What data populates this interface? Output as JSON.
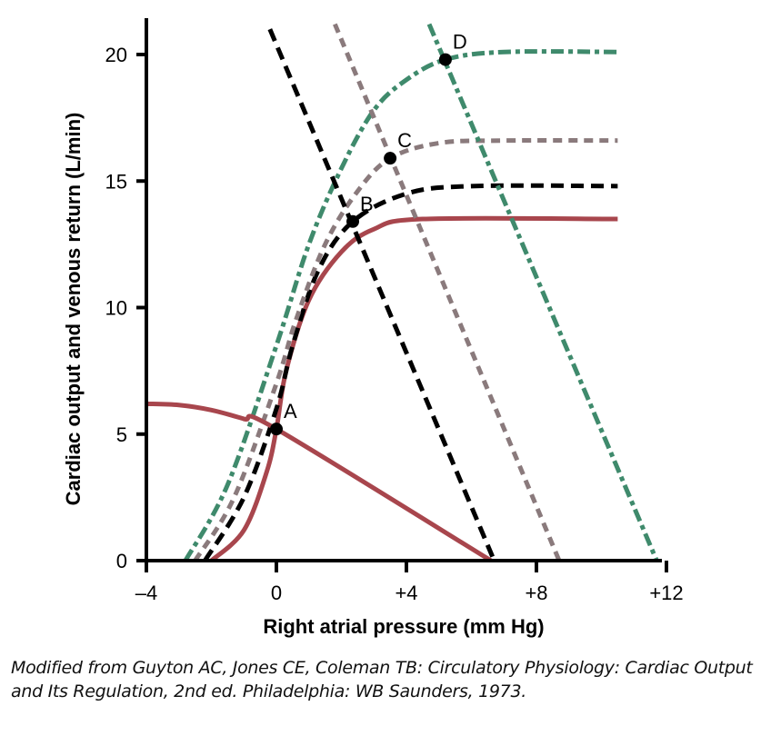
{
  "chart_data": {
    "type": "line",
    "xlabel": "Right atrial pressure (mm Hg)",
    "ylabel": "Cardiac output and venous return (L/min)",
    "xlim": [
      -4,
      12
    ],
    "ylim": [
      0,
      20
    ],
    "x_ticks": [
      {
        "v": -4,
        "label": "–4"
      },
      {
        "v": 0,
        "label": "0"
      },
      {
        "v": 4,
        "label": "+4"
      },
      {
        "v": 8,
        "label": "+8"
      },
      {
        "v": 12,
        "label": "+12"
      }
    ],
    "y_ticks": [
      {
        "v": 0,
        "label": "0"
      },
      {
        "v": 5,
        "label": "5"
      },
      {
        "v": 10,
        "label": "10"
      },
      {
        "v": 15,
        "label": "15"
      },
      {
        "v": 20,
        "label": "20"
      }
    ],
    "grid": false,
    "series": [
      {
        "kind": "cardiac-output",
        "color": "#a8464d",
        "style": "solid",
        "points": [
          [
            -2,
            0
          ],
          [
            -1,
            1.2
          ],
          [
            -0.3,
            3.5
          ],
          [
            0,
            5.2
          ],
          [
            0.3,
            7.5
          ],
          [
            1,
            10.3
          ],
          [
            2,
            12.2
          ],
          [
            3,
            13.1
          ],
          [
            4.5,
            13.5
          ],
          [
            10.5,
            13.5
          ]
        ]
      },
      {
        "kind": "cardiac-output",
        "color": "#000000",
        "style": "dashed",
        "points": [
          [
            -2.2,
            0
          ],
          [
            -1,
            2.5
          ],
          [
            0,
            6
          ],
          [
            0.5,
            8.5
          ],
          [
            1.3,
            11.5
          ],
          [
            2.35,
            13.4
          ],
          [
            4,
            14.5
          ],
          [
            6,
            14.8
          ],
          [
            10.5,
            14.8
          ]
        ]
      },
      {
        "kind": "cardiac-output",
        "color": "#8a7a7c",
        "style": "dotted-dash",
        "points": [
          [
            -2.5,
            0
          ],
          [
            -1.3,
            2.5
          ],
          [
            0,
            7
          ],
          [
            0.6,
            9.5
          ],
          [
            1.5,
            12.5
          ],
          [
            2.5,
            14.6
          ],
          [
            3.5,
            15.9
          ],
          [
            5,
            16.5
          ],
          [
            7,
            16.6
          ],
          [
            10.5,
            16.6
          ]
        ]
      },
      {
        "kind": "cardiac-output",
        "color": "#3f8a6c",
        "style": "dash-dot",
        "points": [
          [
            -2.8,
            0
          ],
          [
            -1.5,
            3
          ],
          [
            0,
            8.5
          ],
          [
            1,
            12.5
          ],
          [
            2,
            15.5
          ],
          [
            3,
            17.8
          ],
          [
            4,
            19
          ],
          [
            5.2,
            19.8
          ],
          [
            7,
            20.1
          ],
          [
            10.5,
            20.1
          ]
        ]
      },
      {
        "kind": "venous-return",
        "color": "#a8464d",
        "style": "solid",
        "points": [
          [
            -4,
            6.2
          ],
          [
            -3,
            6.15
          ],
          [
            -2,
            5.95
          ],
          [
            -1,
            5.6
          ],
          [
            0,
            5.2
          ],
          [
            6.6,
            0
          ]
        ]
      },
      {
        "kind": "venous-return",
        "color": "#000000",
        "style": "dashed",
        "points": [
          [
            -0.2,
            21
          ],
          [
            6.7,
            0
          ]
        ]
      },
      {
        "kind": "venous-return",
        "color": "#8a7a7c",
        "style": "dotted-dash",
        "points": [
          [
            1.8,
            21.2
          ],
          [
            8.7,
            0
          ]
        ]
      },
      {
        "kind": "venous-return",
        "color": "#3f8a6c",
        "style": "dash-dot",
        "points": [
          [
            4.7,
            21.2
          ],
          [
            11.7,
            0
          ]
        ]
      }
    ],
    "annotations": [
      {
        "label": "A",
        "x": 0,
        "y": 5.2
      },
      {
        "label": "B",
        "x": 2.35,
        "y": 13.4
      },
      {
        "label": "C",
        "x": 3.5,
        "y": 15.9
      },
      {
        "label": "D",
        "x": 5.2,
        "y": 19.8
      }
    ]
  },
  "caption": "Modified from Guyton AC, Jones CE, Coleman TB: Circulatory Physiology: Cardiac Output and Its Regulation, 2nd ed. Philadelphia: WB Saunders, 1973."
}
